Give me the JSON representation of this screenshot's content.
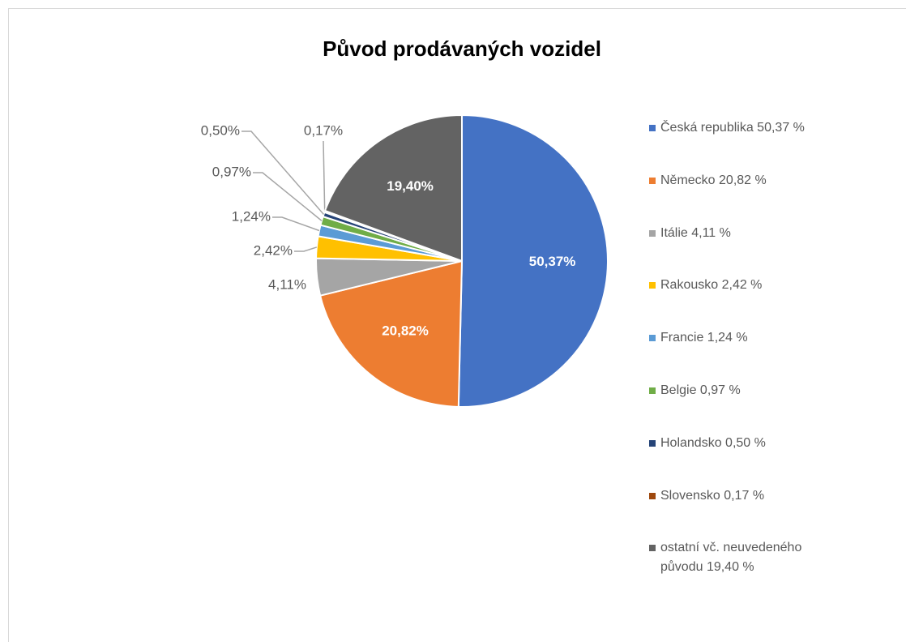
{
  "chart_data": {
    "type": "pie",
    "title": "Původ prodávaných vozidel",
    "categories": [
      "Česká republika 50,37 %",
      "Německo 20,82 %",
      "Itálie 4,11 %",
      "Rakousko 2,42 %",
      "Francie 1,24 %",
      "Belgie 0,97 %",
      "Holandsko 0,50 %",
      "Slovensko 0,17 %",
      "ostatní vč. neuvedeného původu 19,40 %"
    ],
    "values": [
      50.37,
      20.82,
      4.11,
      2.42,
      1.24,
      0.97,
      0.5,
      0.17,
      19.4
    ],
    "value_labels": [
      "50,37%",
      "20,82%",
      "4,11%",
      "2,42%",
      "1,24%",
      "0,97%",
      "0,50%",
      "0,17%",
      "19,40%"
    ],
    "colors": [
      "#4472c4",
      "#ed7d31",
      "#a5a5a5",
      "#ffc000",
      "#5b9bd5",
      "#70ad47",
      "#264478",
      "#9e480e",
      "#636363"
    ],
    "legend": "right"
  }
}
